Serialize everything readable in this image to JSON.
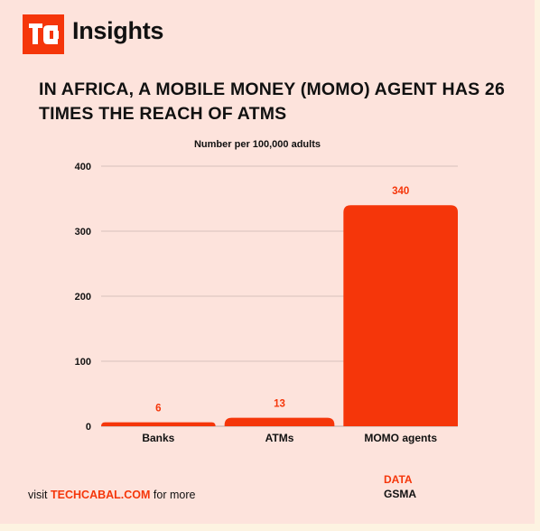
{
  "brand": {
    "name": "Insights",
    "logo_color": "#f5360a"
  },
  "headline": "IN AFRICA, A MOBILE MONEY (MOMO) AGENT HAS 26 TIMES THE REACH OF ATMS",
  "footer": {
    "visit_prefix": "visit",
    "site": "TECHCABAL.COM",
    "visit_suffix": "for more",
    "data_label": "DATA",
    "data_source": "GSMA"
  },
  "chart_data": {
    "type": "bar",
    "title": "Number per 100,000 adults",
    "categories": [
      "Banks",
      "ATMs",
      "MOMO agents"
    ],
    "values": [
      6,
      13,
      340
    ],
    "data_labels": [
      "6",
      "13",
      "340"
    ],
    "ylim": [
      0,
      400
    ],
    "yticks": [
      0,
      100,
      200,
      300,
      400
    ],
    "grid": true,
    "bar_color": "#f5360a",
    "xlabel": "",
    "ylabel": ""
  }
}
